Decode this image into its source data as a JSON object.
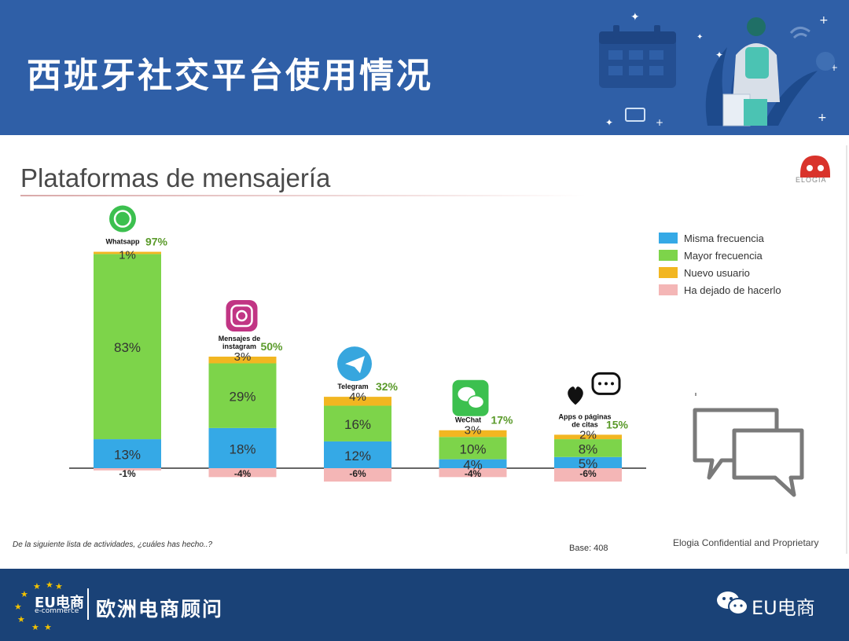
{
  "header": {
    "title": "西班牙社交平台使用情况"
  },
  "slide": {
    "subtitle": "Plataformas de mensajería",
    "logo_text": "ELOGIA",
    "footnote": "De la siguiente lista de actividades, ¿cuáles has hecho..?",
    "base": "Base: 408",
    "confidential": "Elogia Confidential and Proprietary"
  },
  "legend": [
    {
      "label": "Misma frecuencia",
      "color": "#35a9e6"
    },
    {
      "label": "Mayor  frecuencia",
      "color": "#7dd44a"
    },
    {
      "label": "Nuevo usuario",
      "color": "#f2b621"
    },
    {
      "label": "Ha dejado de hacerlo",
      "color": "#f4b6b6"
    }
  ],
  "chart_data": {
    "type": "bar",
    "stacked": true,
    "categories": [
      "Whatsapp",
      "Mensajes de instagram",
      "Telegram",
      "WeChat",
      "Apps o páginas de citas"
    ],
    "category_labels": [
      [
        "Whatsapp"
      ],
      [
        "Mensajes de",
        "instagram"
      ],
      [
        "Telegram"
      ],
      [
        "WeChat"
      ],
      [
        "Apps o páginas",
        "de citas"
      ]
    ],
    "totals": [
      "97%",
      "50%",
      "32%",
      "17%",
      "15%"
    ],
    "icons": [
      "whatsapp-icon",
      "instagram-icon",
      "telegram-icon",
      "wechat-icon",
      "heart-chat-icon"
    ],
    "series": [
      {
        "name": "Misma frecuencia",
        "values": [
          13,
          18,
          12,
          4,
          5
        ],
        "labels": [
          "13%",
          "18%",
          "12%",
          "4%",
          "5%"
        ]
      },
      {
        "name": "Mayor  frecuencia",
        "values": [
          83,
          29,
          16,
          10,
          8
        ],
        "labels": [
          "83%",
          "29%",
          "16%",
          "10%",
          "8%"
        ]
      },
      {
        "name": "Nuevo usuario",
        "values": [
          1,
          3,
          4,
          3,
          2
        ],
        "labels": [
          "1%",
          "3%",
          "4%",
          "3%",
          "2%"
        ]
      },
      {
        "name": "Ha dejado de hacerlo",
        "values": [
          -1,
          -4,
          -6,
          -4,
          -6
        ],
        "labels": [
          "-1%",
          "-4%",
          "-6%",
          "-4%",
          "-6%"
        ]
      }
    ]
  },
  "footer": {
    "eu_logo": "EU电商",
    "eu_sub": "e-commerce",
    "brand": "欧洲电商顾问",
    "wechat_label": "EU电商"
  }
}
